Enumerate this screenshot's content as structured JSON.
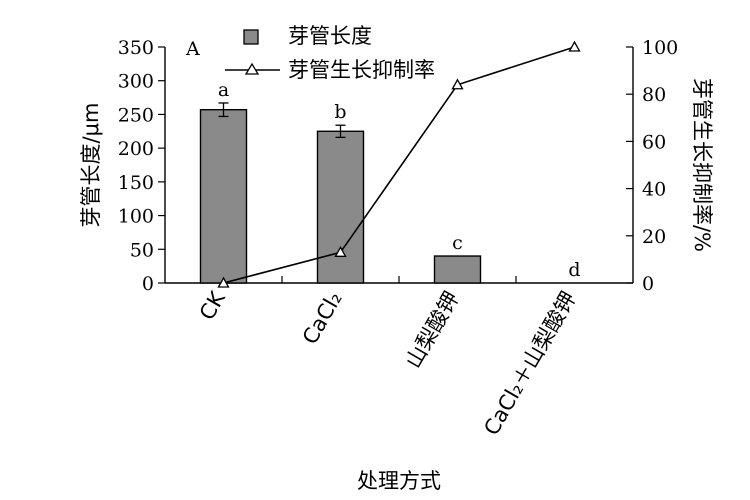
{
  "chart_data": {
    "type": "bar+line",
    "panel_label": "A",
    "categories": [
      "CK",
      "CaCl₂",
      "山梨酸钾",
      "CaCl₂＋山梨酸钾"
    ],
    "xlabel": "处理方式",
    "bar_series": {
      "name": "芽管长度",
      "values": [
        257,
        225,
        40,
        0
      ],
      "errors": [
        10,
        9,
        0,
        0
      ],
      "significance": [
        "a",
        "b",
        "c",
        "d"
      ],
      "axis": "left"
    },
    "line_series": {
      "name": "芽管生长抑制率",
      "values": [
        0,
        13,
        84,
        100
      ],
      "axis": "right"
    },
    "y_left": {
      "label": "芽管长度/μm",
      "ylim": [
        0,
        350
      ],
      "ticks": [
        "0",
        "50",
        "100",
        "150",
        "200",
        "250",
        "300",
        "350"
      ]
    },
    "y_right": {
      "label": "芽管生长抑制率/%",
      "ylim": [
        0,
        100
      ],
      "ticks": [
        "0",
        "20",
        "40",
        "60",
        "80",
        "100"
      ]
    },
    "grid": false,
    "legend_position": "top",
    "colors": {
      "bar_fill": "#8a8a8a",
      "line": "#000000",
      "marker_fill": "#ffffff"
    }
  }
}
